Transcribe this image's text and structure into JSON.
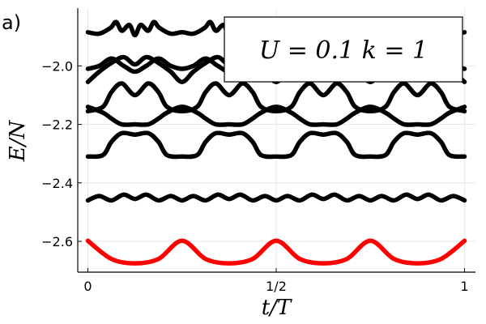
{
  "panel_label": "a)",
  "annotation": "U = 0.1 k = 1",
  "chart_data": {
    "type": "line",
    "xlabel": "t/T",
    "ylabel": "E/N",
    "xlim": [
      0,
      1
    ],
    "ylim": [
      -2.7,
      -1.82
    ],
    "x_ticks": [
      0,
      0.5,
      1
    ],
    "x_tick_labels": [
      "0",
      "1/2",
      "1"
    ],
    "y_ticks": [
      -2.6,
      -2.4,
      -2.2,
      -2.0
    ],
    "y_tick_labels": [
      "−2.6",
      "−2.4",
      "−2.2",
      "−2.0"
    ],
    "grid": true,
    "period": 0.25,
    "series": [
      {
        "color": "#ff0000",
        "x": [
          0,
          0.0625,
          0.125,
          0.1875,
          0.25
        ],
        "y": [
          -2.598,
          -2.66,
          -2.675,
          -2.66,
          -2.598
        ]
      },
      {
        "color": "#000000",
        "x": [
          0,
          0.03,
          0.0625,
          0.095,
          0.125,
          0.155,
          0.1875,
          0.22,
          0.25
        ],
        "y": [
          -2.46,
          -2.445,
          -2.46,
          -2.44,
          -2.455,
          -2.44,
          -2.46,
          -2.445,
          -2.46
        ]
      },
      {
        "color": "#000000",
        "x": [
          0,
          0.04,
          0.0625,
          0.09,
          0.125,
          0.16,
          0.1875,
          0.21,
          0.25
        ],
        "y": [
          -2.31,
          -2.305,
          -2.26,
          -2.23,
          -2.235,
          -2.23,
          -2.26,
          -2.305,
          -2.31
        ]
      },
      {
        "color": "#000000",
        "x": [
          0,
          0.04,
          0.0625,
          0.09,
          0.125,
          0.16,
          0.1875,
          0.21,
          0.25
        ],
        "y": [
          -2.14,
          -2.16,
          -2.18,
          -2.2,
          -2.2,
          -2.2,
          -2.18,
          -2.16,
          -2.14
        ]
      },
      {
        "color": "#000000",
        "x": [
          0,
          0.04,
          0.0625,
          0.09,
          0.125,
          0.16,
          0.1875,
          0.21,
          0.25
        ],
        "y": [
          -2.155,
          -2.14,
          -2.09,
          -2.06,
          -2.1,
          -2.06,
          -2.09,
          -2.14,
          -2.155
        ]
      },
      {
        "color": "#000000",
        "x": [
          0,
          0.03,
          0.0625,
          0.095,
          0.125,
          0.155,
          0.1875,
          0.22,
          0.25
        ],
        "y": [
          -2.055,
          -2.02,
          -1.99,
          -1.97,
          -1.995,
          -1.97,
          -1.99,
          -2.02,
          -2.055
        ]
      },
      {
        "color": "#000000",
        "x": [
          0,
          0.03,
          0.0625,
          0.095,
          0.125,
          0.155,
          0.1875,
          0.22,
          0.25
        ],
        "y": [
          -2.01,
          -2.0,
          -1.975,
          -2.0,
          -2.02,
          -2.0,
          -1.975,
          -2.0,
          -2.01
        ]
      },
      {
        "color": "#000000",
        "x": [
          0,
          0.03,
          0.06,
          0.075,
          0.09,
          0.11,
          0.125,
          0.14,
          0.16,
          0.175,
          0.19,
          0.22,
          0.25
        ],
        "y": [
          -1.885,
          -1.89,
          -1.87,
          -1.85,
          -1.88,
          -1.86,
          -1.895,
          -1.86,
          -1.88,
          -1.85,
          -1.87,
          -1.89,
          -1.885
        ]
      }
    ]
  }
}
